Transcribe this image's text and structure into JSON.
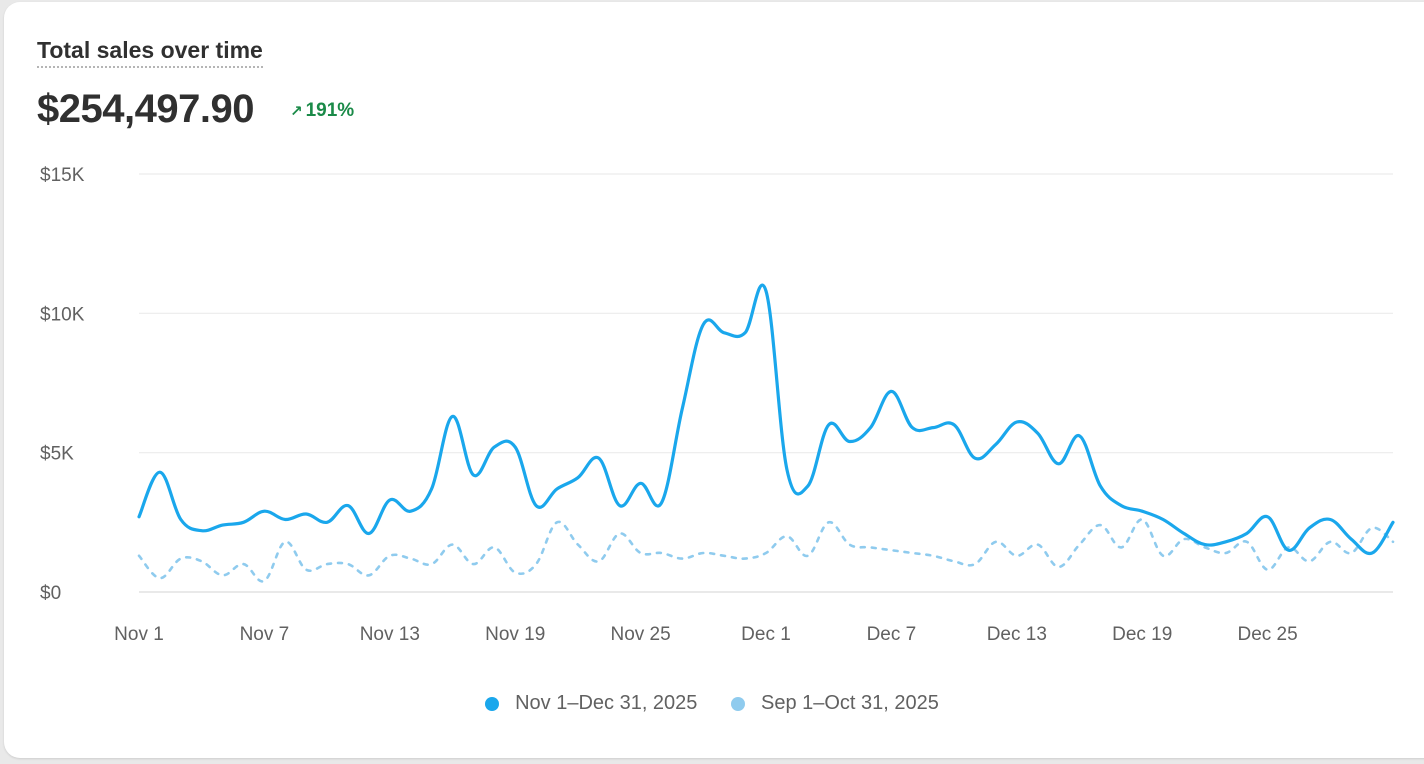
{
  "header": {
    "title": "Total sales over time",
    "total": "$254,497.90",
    "change_arrow": "↗",
    "change": "191%",
    "change_color": "#1a8a48"
  },
  "chart_data": {
    "type": "line",
    "title": "Total sales over time",
    "xlabel": "",
    "ylabel": "",
    "ylim": [
      0,
      15000
    ],
    "y_ticks": [
      "$0",
      "$5K",
      "$10K",
      "$15K"
    ],
    "y_tick_values": [
      0,
      5000,
      10000,
      15000
    ],
    "x_ticks": [
      "Nov 1",
      "Nov 7",
      "Nov 13",
      "Nov 19",
      "Nov 25",
      "Dec 1",
      "Dec 7",
      "Dec 13",
      "Dec 19",
      "Dec 25"
    ],
    "x_tick_index": [
      0,
      6,
      12,
      18,
      24,
      30,
      36,
      42,
      48,
      54
    ],
    "grid": true,
    "legend_position": "bottom-center",
    "series": [
      {
        "name": "Nov 1–Dec 31, 2025",
        "color": "#1aa7ec",
        "style": "solid",
        "values": [
          2700,
          4300,
          2600,
          2200,
          2400,
          2500,
          2900,
          2600,
          2800,
          2500,
          3100,
          2100,
          3300,
          2900,
          3700,
          6300,
          4200,
          5200,
          5200,
          3100,
          3700,
          4100,
          4800,
          3100,
          3900,
          3200,
          6600,
          9600,
          9300,
          9300,
          10800,
          4400,
          3800,
          6000,
          5400,
          5900,
          7200,
          5900,
          5900,
          6000,
          4800,
          5300,
          6100,
          5700,
          4600,
          5600,
          3800,
          3100,
          2900,
          2600,
          2100,
          1700,
          1800,
          2100,
          2700,
          1500,
          2300,
          2600,
          1900,
          1400,
          2500
        ]
      },
      {
        "name": "Sep 1–Oct 31, 2025",
        "color": "#8fcbee",
        "style": "dashed",
        "values": [
          1300,
          500,
          1200,
          1100,
          600,
          1000,
          400,
          1800,
          800,
          1000,
          1000,
          600,
          1300,
          1200,
          1000,
          1700,
          1000,
          1600,
          700,
          1000,
          2500,
          1700,
          1100,
          2100,
          1400,
          1400,
          1200,
          1400,
          1300,
          1200,
          1400,
          2000,
          1300,
          2500,
          1700,
          1600,
          1500,
          1400,
          1300,
          1100,
          1000,
          1800,
          1300,
          1700,
          900,
          1700,
          2400,
          1600,
          2600,
          1300,
          1900,
          1600,
          1400,
          1800,
          800,
          1600,
          1100,
          1800,
          1400,
          2300,
          1800
        ]
      }
    ]
  }
}
